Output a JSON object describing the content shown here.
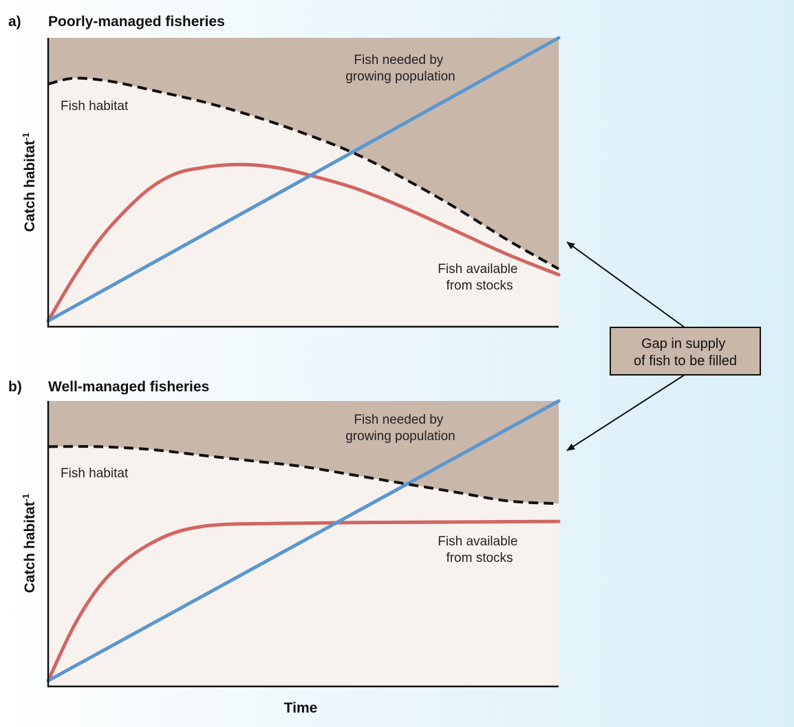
{
  "colors": {
    "gap_fill": "#c9b7aa",
    "plot_bg": "#f8f2ef",
    "demand_line": "#5b97cf",
    "supply_line": "#d06663",
    "habitat_line": "#111111",
    "callout_fill": "#c9b7aa"
  },
  "callout": {
    "line1": "Gap in supply",
    "line2": "of fish to be filled"
  },
  "shared_xlabel": "Time",
  "chart_data": [
    {
      "type": "line",
      "panel": "a)",
      "title": "Poorly-managed fisheries",
      "ylabel": "Catch habitat",
      "ylabel_sup": "-1",
      "x_range": [
        0,
        1
      ],
      "y_range": [
        0,
        1
      ],
      "series": [
        {
          "name": "Fish needed by growing population",
          "label_line1": "Fish needed by",
          "label_line2": "growing population",
          "points": [
            [
              0,
              0.02
            ],
            [
              1,
              1.0
            ]
          ]
        },
        {
          "name": "Fish habitat",
          "label_line1": "Fish habitat",
          "points": [
            [
              0,
              0.84
            ],
            [
              0.05,
              0.86
            ],
            [
              0.12,
              0.85
            ],
            [
              0.2,
              0.82
            ],
            [
              0.3,
              0.78
            ],
            [
              0.4,
              0.73
            ],
            [
              0.5,
              0.67
            ],
            [
              0.6,
              0.6
            ],
            [
              0.7,
              0.51
            ],
            [
              0.8,
              0.41
            ],
            [
              0.9,
              0.3
            ],
            [
              1,
              0.2
            ]
          ]
        },
        {
          "name": "Fish available from stocks",
          "label_line1": "Fish available",
          "label_line2": "from stocks",
          "points": [
            [
              0,
              0.02
            ],
            [
              0.05,
              0.17
            ],
            [
              0.1,
              0.3
            ],
            [
              0.15,
              0.4
            ],
            [
              0.2,
              0.48
            ],
            [
              0.25,
              0.53
            ],
            [
              0.3,
              0.55
            ],
            [
              0.35,
              0.56
            ],
            [
              0.4,
              0.56
            ],
            [
              0.45,
              0.55
            ],
            [
              0.5,
              0.53
            ],
            [
              0.6,
              0.48
            ],
            [
              0.7,
              0.41
            ],
            [
              0.8,
              0.33
            ],
            [
              0.9,
              0.25
            ],
            [
              1,
              0.18
            ]
          ]
        }
      ]
    },
    {
      "type": "line",
      "panel": "b)",
      "title": "Well-managed fisheries",
      "ylabel": "Catch habitat",
      "ylabel_sup": "-1",
      "x_range": [
        0,
        1
      ],
      "y_range": [
        0,
        1
      ],
      "series": [
        {
          "name": "Fish needed by growing population",
          "label_line1": "Fish needed by",
          "label_line2": "growing population",
          "points": [
            [
              0,
              0.02
            ],
            [
              1,
              1.0
            ]
          ]
        },
        {
          "name": "Fish habitat",
          "label_line1": "Fish habitat",
          "points": [
            [
              0,
              0.84
            ],
            [
              0.1,
              0.84
            ],
            [
              0.2,
              0.83
            ],
            [
              0.3,
              0.81
            ],
            [
              0.4,
              0.79
            ],
            [
              0.5,
              0.77
            ],
            [
              0.6,
              0.74
            ],
            [
              0.7,
              0.71
            ],
            [
              0.8,
              0.68
            ],
            [
              0.9,
              0.65
            ],
            [
              1,
              0.64
            ]
          ]
        },
        {
          "name": "Fish available from stocks",
          "label_line1": "Fish available",
          "label_line2": "from stocks",
          "points": [
            [
              0,
              0.02
            ],
            [
              0.05,
              0.21
            ],
            [
              0.1,
              0.35
            ],
            [
              0.15,
              0.44
            ],
            [
              0.2,
              0.5
            ],
            [
              0.25,
              0.54
            ],
            [
              0.3,
              0.56
            ],
            [
              0.35,
              0.568
            ],
            [
              0.4,
              0.57
            ],
            [
              0.5,
              0.572
            ],
            [
              0.6,
              0.574
            ],
            [
              0.8,
              0.576
            ],
            [
              1,
              0.578
            ]
          ]
        }
      ]
    }
  ]
}
